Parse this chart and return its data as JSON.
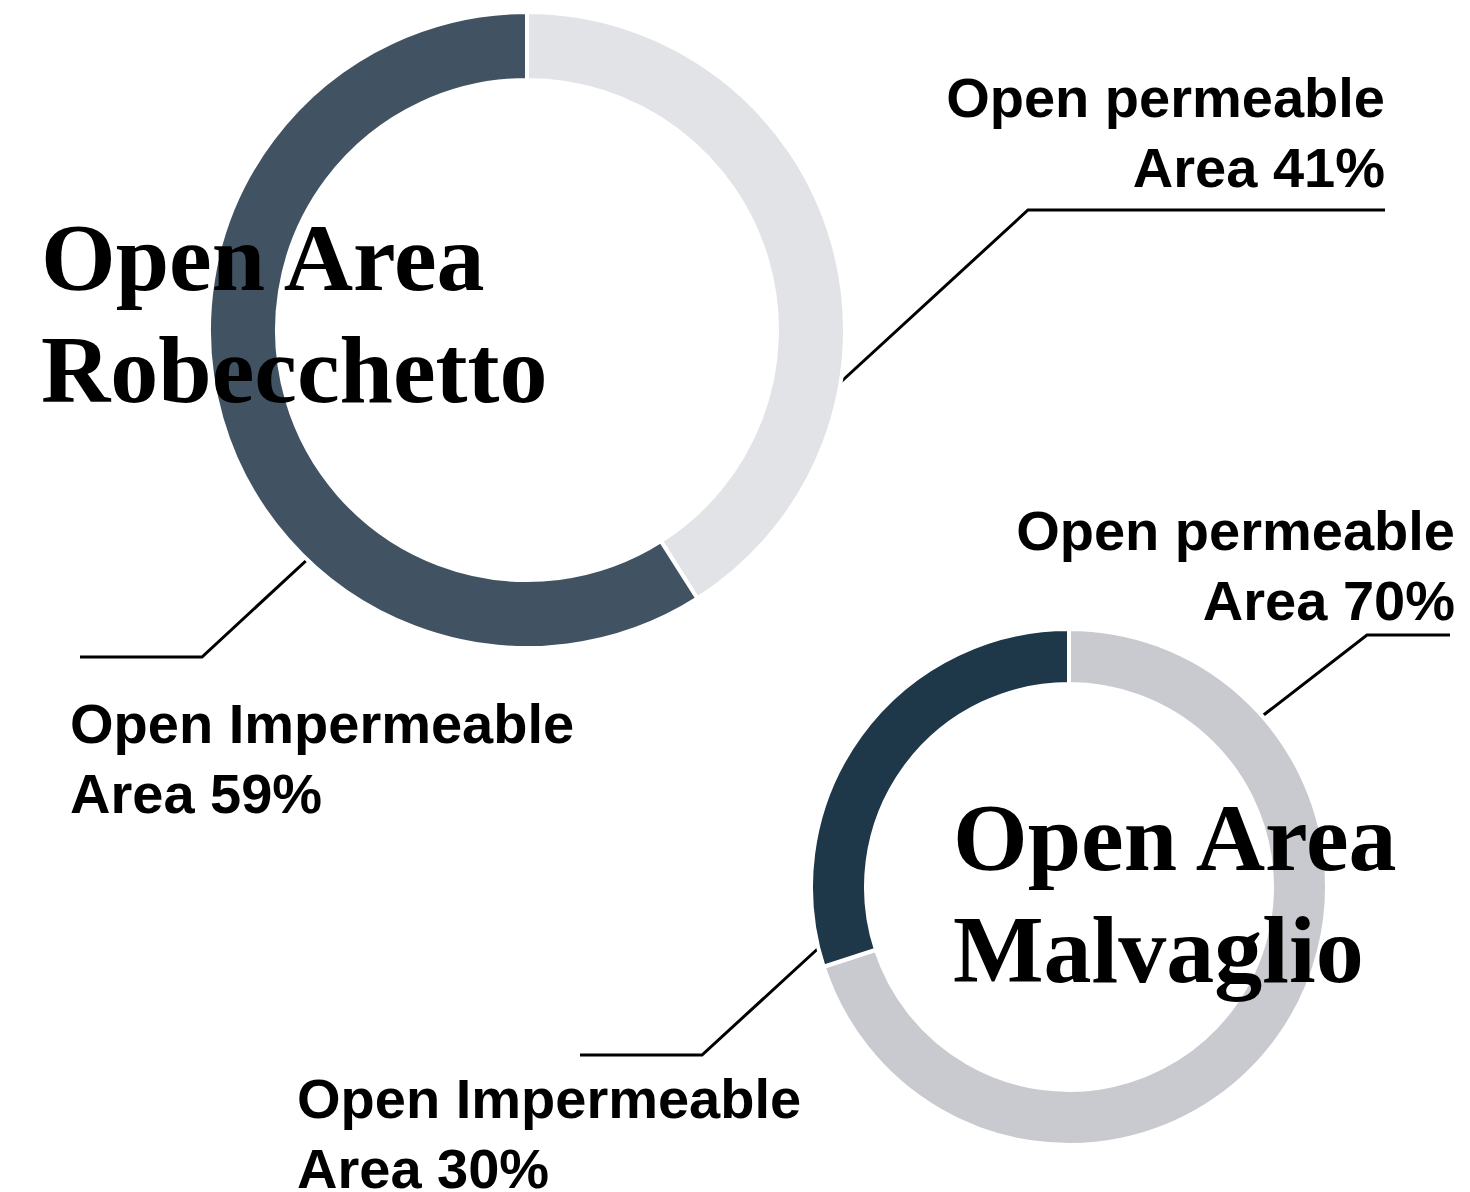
{
  "chart_data": [
    {
      "type": "donut",
      "title": "Open Area Robecchetto",
      "categories": [
        "Open permeable Area",
        "Open Impermeable Area"
      ],
      "values": [
        41,
        59
      ],
      "value_labels": [
        "41%",
        "59%"
      ],
      "colors": [
        "#e2e3e7",
        "#415262"
      ]
    },
    {
      "type": "donut",
      "title": "Open Area Malvaglio",
      "categories": [
        "Open permeable Area",
        "Open Impermeable Area"
      ],
      "values": [
        70,
        30
      ],
      "value_labels": [
        "70%",
        "30%"
      ],
      "colors": [
        "#c9cacf",
        "#1e3749"
      ]
    }
  ]
}
